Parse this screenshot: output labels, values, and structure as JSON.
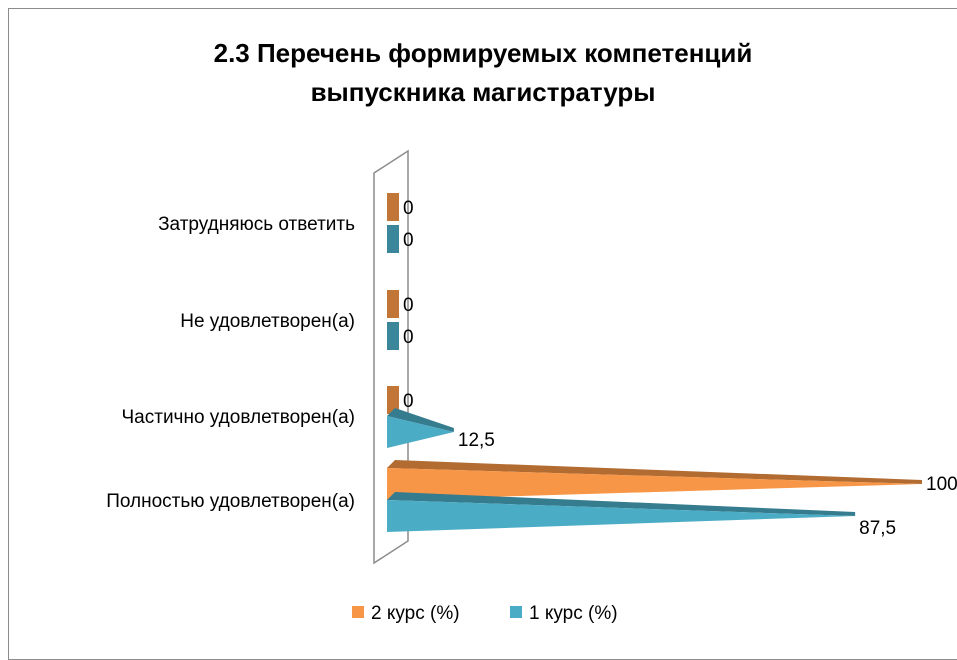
{
  "chart_data": {
    "type": "bar",
    "orientation": "horizontal",
    "style": "3d-cone",
    "title": "2.3 Перечень формируемых компетенций выпускника магистратуры",
    "title_lines": [
      "2.3 Перечень формируемых компетенций",
      "выпускника магистратуры"
    ],
    "categories": [
      "Полностью удовлетворен(а)",
      "Частично удовлетворен(а)",
      "Не удовлетворен(а)",
      "Затрудняюсь ответить"
    ],
    "series": [
      {
        "name": "1 курс (%)",
        "color": "#4bacc6",
        "values": [
          87.5,
          12.5,
          0,
          0
        ],
        "value_labels": [
          "87,5",
          "12,5",
          "0",
          "0"
        ]
      },
      {
        "name": "2 курс (%)",
        "color": "#f79646",
        "values": [
          100,
          0,
          0,
          0
        ],
        "value_labels": [
          "100",
          "0",
          "0",
          "0"
        ]
      }
    ],
    "xlim": [
      0,
      100
    ],
    "grid": false,
    "legend_position": "bottom"
  }
}
